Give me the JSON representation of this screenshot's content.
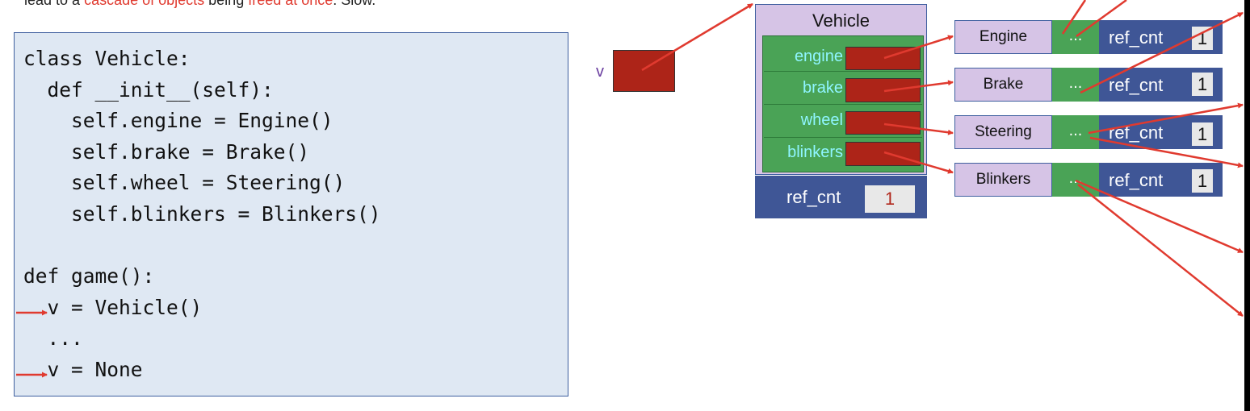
{
  "caption": {
    "part1": "lead to a ",
    "red1": "cascade of objects",
    "part2": " being ",
    "red2": "freed at once",
    "part3": ". Slow."
  },
  "code": {
    "lines": [
      "class Vehicle:",
      "  def __init__(self):",
      "    self.engine = Engine()",
      "    self.brake = Brake()",
      "    self.wheel = Steering()",
      "    self.blinkers = Blinkers()",
      "",
      "def game():",
      "  v = Vehicle()",
      "  ...",
      "  v = None"
    ],
    "arrow_lines": [
      8,
      10
    ]
  },
  "variable": {
    "name": "v"
  },
  "vehicle": {
    "title": "Vehicle",
    "fields": [
      "engine",
      "brake",
      "wheel",
      "blinkers"
    ],
    "ref_label": "ref_cnt",
    "ref_value": "1"
  },
  "objects": [
    {
      "name": "Engine",
      "dots": "...",
      "ref_label": "ref_cnt",
      "ref_value": "1"
    },
    {
      "name": "Brake",
      "dots": "...",
      "ref_label": "ref_cnt",
      "ref_value": "1"
    },
    {
      "name": "Steering",
      "dots": "...",
      "ref_label": "ref_cnt",
      "ref_value": "1"
    },
    {
      "name": "Blinkers",
      "dots": "...",
      "ref_label": "ref_cnt",
      "ref_value": "1"
    }
  ],
  "colors": {
    "pointer_arrow": "#e03a2f",
    "pointer_box": "#ad2418",
    "object_header": "#d6c4e6",
    "object_fields": "#4aa356",
    "ref_count_bar": "#3f5696",
    "field_label": "#8ff5ff"
  }
}
